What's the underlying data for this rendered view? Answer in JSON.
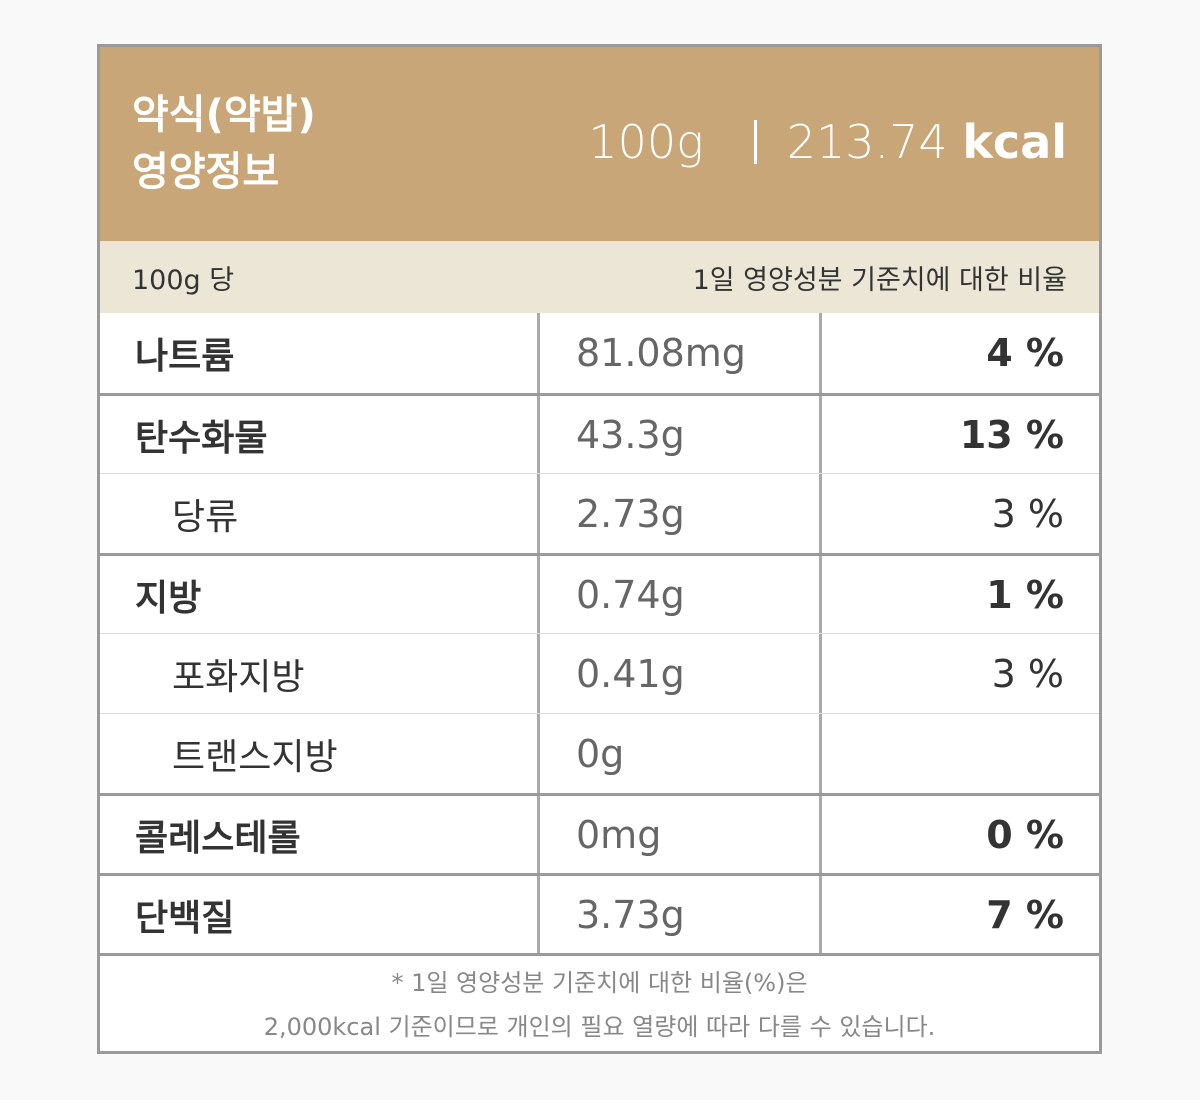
{
  "header": {
    "title_lines": [
      "약식(약밥)",
      "영양정보"
    ],
    "serving": "100g",
    "calories": "213.74",
    "calorie_unit": "kcal"
  },
  "subheader": {
    "left": "100g 당",
    "right": "1일 영양성분 기준치에 대한 비율"
  },
  "table": {
    "rows": [
      {
        "name": "나트륨",
        "amount": "81.08mg",
        "percent": "4 %",
        "sub": false
      },
      {
        "name": "탄수화물",
        "amount": "43.3g",
        "percent": "13 %",
        "sub": false
      },
      {
        "name": "당류",
        "amount": "2.73g",
        "percent": "3 %",
        "sub": true
      },
      {
        "name": "지방",
        "amount": "0.74g",
        "percent": "1 %",
        "sub": false
      },
      {
        "name": "포화지방",
        "amount": "0.41g",
        "percent": "3 %",
        "sub": true
      },
      {
        "name": "트랜스지방",
        "amount": "0g",
        "percent": null,
        "sub": true
      },
      {
        "name": "콜레스테롤",
        "amount": "0mg",
        "percent": "0 %",
        "sub": false
      },
      {
        "name": "단백질",
        "amount": "3.73g",
        "percent": "7 %",
        "sub": false
      }
    ]
  },
  "footnote": {
    "lines": [
      "* 1일 영양성분 기준치에 대한 비율(%)은",
      "2,000kcal 기준이므로 개인의 필요 열량에 따라 다를 수 있습니다."
    ]
  }
}
